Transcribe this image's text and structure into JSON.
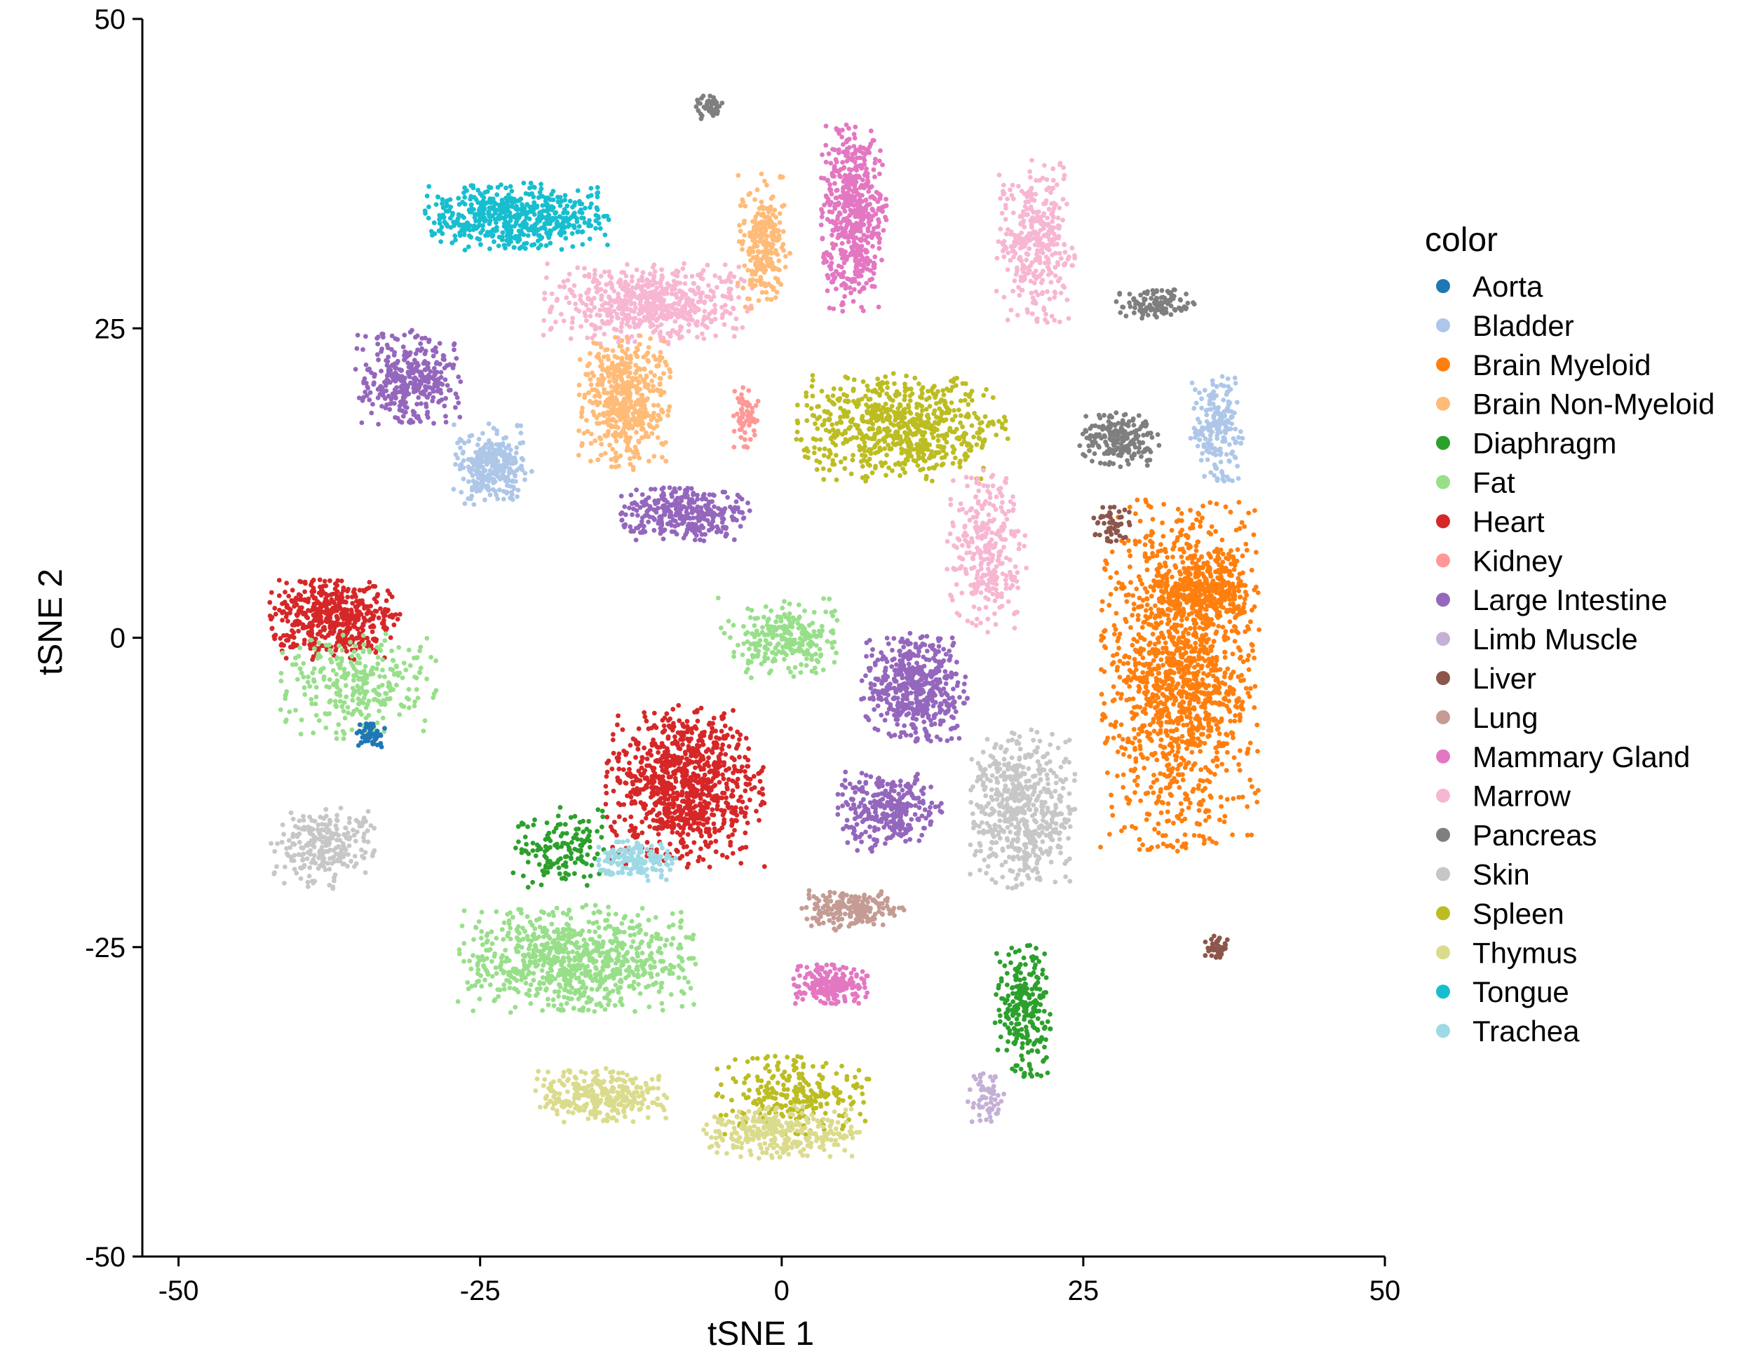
{
  "chart_data": {
    "type": "scatter",
    "title": "",
    "xlabel": "tSNE 1",
    "ylabel": "tSNE 2",
    "xlim": [
      -53,
      50
    ],
    "ylim": [
      -50,
      50
    ],
    "xticks": [
      -50,
      -25,
      0,
      25,
      50
    ],
    "yticks": [
      -50,
      -25,
      0,
      25,
      50
    ],
    "xtick_labels": [
      "-50",
      "-25",
      "0",
      "25",
      "50"
    ],
    "ytick_labels": [
      "-50",
      "-25",
      "0",
      "25",
      "50"
    ],
    "grid": false,
    "legend": {
      "title": "color",
      "position": "right",
      "entries": [
        {
          "label": "Aorta",
          "color": "#1f77b4"
        },
        {
          "label": "Bladder",
          "color": "#aec7e8"
        },
        {
          "label": "Brain Myeloid",
          "color": "#ff7f0e"
        },
        {
          "label": "Brain Non-Myeloid",
          "color": "#ffbb78"
        },
        {
          "label": "Diaphragm",
          "color": "#2ca02c"
        },
        {
          "label": "Fat",
          "color": "#98df8a"
        },
        {
          "label": "Heart",
          "color": "#d62728"
        },
        {
          "label": "Kidney",
          "color": "#ff9896"
        },
        {
          "label": "Large Intestine",
          "color": "#9467bd"
        },
        {
          "label": "Limb Muscle",
          "color": "#c5b0d5"
        },
        {
          "label": "Liver",
          "color": "#8c564b"
        },
        {
          "label": "Lung",
          "color": "#c49c94"
        },
        {
          "label": "Mammary Gland",
          "color": "#e377c2"
        },
        {
          "label": "Marrow",
          "color": "#f7b6d2"
        },
        {
          "label": "Pancreas",
          "color": "#7f7f7f"
        },
        {
          "label": "Skin",
          "color": "#c7c7c7"
        },
        {
          "label": "Spleen",
          "color": "#bcbd22"
        },
        {
          "label": "Thymus",
          "color": "#dbdb8d"
        },
        {
          "label": "Tongue",
          "color": "#17becf"
        },
        {
          "label": "Trachea",
          "color": "#9edae5"
        }
      ]
    },
    "clusters": [
      {
        "label": "Brain Myeloid",
        "color": "#ff7f0e",
        "cx": 33,
        "cy": -3,
        "rx": 6,
        "ry": 13,
        "n": 1400
      },
      {
        "label": "Brain Myeloid",
        "color": "#ff7f0e",
        "cx": 35,
        "cy": 4,
        "rx": 4,
        "ry": 3,
        "n": 300
      },
      {
        "label": "Heart",
        "color": "#d62728",
        "cx": -8,
        "cy": -12,
        "rx": 6,
        "ry": 6,
        "n": 900
      },
      {
        "label": "Heart",
        "color": "#d62728",
        "cx": -37,
        "cy": 1.5,
        "rx": 5,
        "ry": 3,
        "n": 500
      },
      {
        "label": "Fat",
        "color": "#98df8a",
        "cx": -17,
        "cy": -26,
        "rx": 9,
        "ry": 4,
        "n": 800
      },
      {
        "label": "Fat",
        "color": "#98df8a",
        "cx": -35,
        "cy": -4,
        "rx": 6,
        "ry": 4,
        "n": 300
      },
      {
        "label": "Fat",
        "color": "#98df8a",
        "cx": 0,
        "cy": 0,
        "rx": 5,
        "ry": 3,
        "n": 250
      },
      {
        "label": "Diaphragm",
        "color": "#2ca02c",
        "cx": -18,
        "cy": -17,
        "rx": 4,
        "ry": 3,
        "n": 150
      },
      {
        "label": "Diaphragm",
        "color": "#2ca02c",
        "cx": 20,
        "cy": -30,
        "rx": 2.2,
        "ry": 5,
        "n": 250
      },
      {
        "label": "Spleen",
        "color": "#bcbd22",
        "cx": 10,
        "cy": 17,
        "rx": 8,
        "ry": 4,
        "n": 700
      },
      {
        "label": "Spleen",
        "color": "#bcbd22",
        "cx": 1,
        "cy": -37,
        "rx": 6,
        "ry": 3,
        "n": 250
      },
      {
        "label": "Thymus",
        "color": "#dbdb8d",
        "cx": -15,
        "cy": -37,
        "rx": 5,
        "ry": 2,
        "n": 300
      },
      {
        "label": "Thymus",
        "color": "#dbdb8d",
        "cx": 0,
        "cy": -40,
        "rx": 6,
        "ry": 2,
        "n": 300
      },
      {
        "label": "Marrow",
        "color": "#f7b6d2",
        "cx": -11,
        "cy": 27,
        "rx": 8,
        "ry": 3,
        "n": 600
      },
      {
        "label": "Marrow",
        "color": "#f7b6d2",
        "cx": 21,
        "cy": 32,
        "rx": 3,
        "ry": 6,
        "n": 350
      },
      {
        "label": "Marrow",
        "color": "#f7b6d2",
        "cx": 17,
        "cy": 7,
        "rx": 3,
        "ry": 6,
        "n": 300
      },
      {
        "label": "Mammary Gland",
        "color": "#e377c2",
        "cx": 6,
        "cy": 34,
        "rx": 2.5,
        "ry": 7,
        "n": 550
      },
      {
        "label": "Mammary Gland",
        "color": "#e377c2",
        "cx": 4,
        "cy": -28,
        "rx": 3,
        "ry": 1.5,
        "n": 200
      },
      {
        "label": "Tongue",
        "color": "#17becf",
        "cx": -22,
        "cy": 34,
        "rx": 7,
        "ry": 2.5,
        "n": 550
      },
      {
        "label": "Brain Non-Myeloid",
        "color": "#ffbb78",
        "cx": -13,
        "cy": 19,
        "rx": 3.5,
        "ry": 5,
        "n": 500
      },
      {
        "label": "Brain Non-Myeloid",
        "color": "#ffbb78",
        "cx": -1.5,
        "cy": 32,
        "rx": 2,
        "ry": 5,
        "n": 250
      },
      {
        "label": "Large Intestine",
        "color": "#9467bd",
        "cx": 11,
        "cy": -4,
        "rx": 4,
        "ry": 4,
        "n": 500
      },
      {
        "label": "Large Intestine",
        "color": "#9467bd",
        "cx": 9,
        "cy": -14,
        "rx": 4,
        "ry": 3,
        "n": 300
      },
      {
        "label": "Large Intestine",
        "color": "#9467bd",
        "cx": -8,
        "cy": 10,
        "rx": 5,
        "ry": 2,
        "n": 350
      },
      {
        "label": "Large Intestine",
        "color": "#9467bd",
        "cx": -31,
        "cy": 21,
        "rx": 4,
        "ry": 3.5,
        "n": 350
      },
      {
        "label": "Skin",
        "color": "#c7c7c7",
        "cx": 20,
        "cy": -14,
        "rx": 4,
        "ry": 6,
        "n": 550
      },
      {
        "label": "Skin",
        "color": "#c7c7c7",
        "cx": -38,
        "cy": -17,
        "rx": 4,
        "ry": 3,
        "n": 250
      },
      {
        "label": "Bladder",
        "color": "#aec7e8",
        "cx": -24,
        "cy": 14,
        "rx": 3,
        "ry": 3,
        "n": 300
      },
      {
        "label": "Bladder",
        "color": "#aec7e8",
        "cx": 36,
        "cy": 17,
        "rx": 2,
        "ry": 4,
        "n": 200
      },
      {
        "label": "Pancreas",
        "color": "#7f7f7f",
        "cx": 28,
        "cy": 16,
        "rx": 3,
        "ry": 2,
        "n": 200
      },
      {
        "label": "Pancreas",
        "color": "#7f7f7f",
        "cx": 31,
        "cy": 27,
        "rx": 3,
        "ry": 1.2,
        "n": 120
      },
      {
        "label": "Pancreas",
        "color": "#7f7f7f",
        "cx": -6,
        "cy": 43,
        "rx": 1,
        "ry": 1,
        "n": 40
      },
      {
        "label": "Lung",
        "color": "#c49c94",
        "cx": 6,
        "cy": -22,
        "rx": 4,
        "ry": 1.5,
        "n": 200
      },
      {
        "label": "Liver",
        "color": "#8c564b",
        "cx": 27.5,
        "cy": 9,
        "rx": 1.5,
        "ry": 1.5,
        "n": 50
      },
      {
        "label": "Liver",
        "color": "#8c564b",
        "cx": 36,
        "cy": -25,
        "rx": 1,
        "ry": 1,
        "n": 40
      },
      {
        "label": "Limb Muscle",
        "color": "#c5b0d5",
        "cx": 17,
        "cy": -37,
        "rx": 1.5,
        "ry": 2,
        "n": 60
      },
      {
        "label": "Trachea",
        "color": "#9edae5",
        "cx": -12,
        "cy": -18,
        "rx": 3,
        "ry": 1.5,
        "n": 150
      },
      {
        "label": "Aorta",
        "color": "#1f77b4",
        "cx": -34,
        "cy": -8,
        "rx": 1.2,
        "ry": 1,
        "n": 50
      },
      {
        "label": "Kidney",
        "color": "#ff9896",
        "cx": -3,
        "cy": 18,
        "rx": 1,
        "ry": 2.5,
        "n": 60
      }
    ]
  }
}
